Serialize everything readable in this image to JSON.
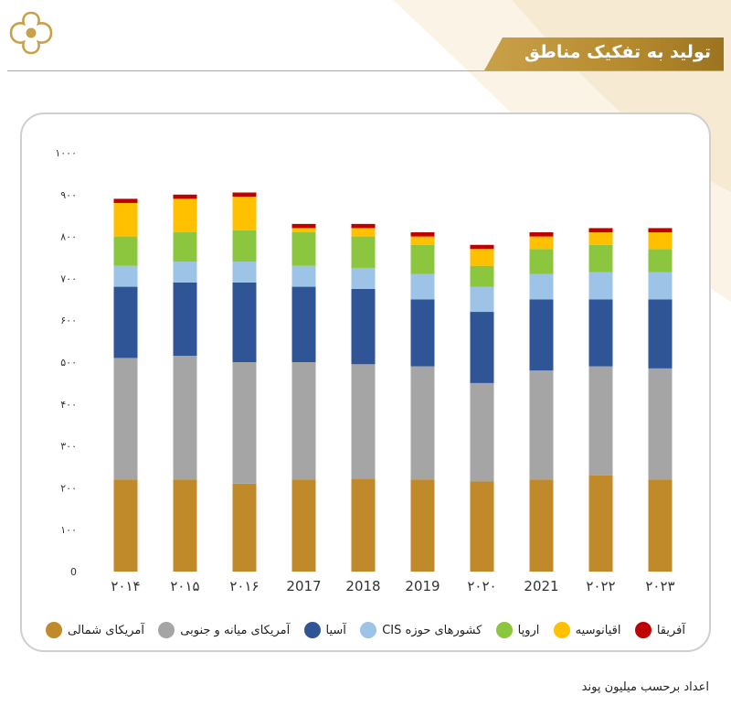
{
  "header": {
    "title": "تولید به تفکیک مناطق"
  },
  "footer": {
    "note": "اعداد برحسب میلیون پوند"
  },
  "icons": {
    "logo": "ornamental-flower-logo-icon"
  },
  "colors": {
    "accent": "#b88c2f",
    "card_border": "#cfcfcf"
  },
  "chart_data": {
    "type": "bar",
    "stacked": true,
    "categories": [
      "۲۰۱۴",
      "۲۰۱۵",
      "۲۰۱۶",
      "2017",
      "2018",
      "2019",
      "۲۰۲۰",
      "2021",
      "۲۰۲۲",
      "۲۰۲۳"
    ],
    "ylim": [
      0,
      1000
    ],
    "yticks": [
      "0",
      "۱۰۰",
      "۲۰۰",
      "۳۰۰",
      "۴۰۰",
      "۵۰۰",
      "۶۰۰",
      "۷۰۰",
      "۸۰۰",
      "۹۰۰",
      "۱۰۰۰"
    ],
    "ytick_values": [
      0,
      100,
      200,
      300,
      400,
      500,
      600,
      700,
      800,
      900,
      1000
    ],
    "grid": false,
    "legend_position": "bottom",
    "series": [
      {
        "name": "آمریکای شمالی",
        "color": "#c08a2b",
        "values": [
          220,
          220,
          210,
          220,
          222,
          220,
          215,
          220,
          230,
          220
        ]
      },
      {
        "name": "آمریکای میانه و جنوبی",
        "color": "#a5a5a5",
        "values": [
          290,
          295,
          290,
          280,
          273,
          270,
          235,
          260,
          260,
          265
        ]
      },
      {
        "name": "آسیا",
        "color": "#2f5597",
        "values": [
          170,
          175,
          190,
          180,
          180,
          160,
          170,
          170,
          160,
          165
        ]
      },
      {
        "name": "کشورهای حوزه CIS",
        "color": "#9dc3e6",
        "values": [
          50,
          50,
          50,
          50,
          50,
          60,
          60,
          60,
          65,
          65
        ]
      },
      {
        "name": "اروپا",
        "color": "#8cc63f",
        "values": [
          70,
          70,
          75,
          80,
          75,
          70,
          50,
          60,
          65,
          55
        ]
      },
      {
        "name": "اقیانوسیه",
        "color": "#ffc000",
        "values": [
          80,
          80,
          80,
          10,
          20,
          20,
          40,
          30,
          30,
          40
        ]
      },
      {
        "name": "آفریقا",
        "color": "#c00000",
        "values": [
          10,
          10,
          10,
          10,
          10,
          10,
          10,
          10,
          10,
          10
        ]
      }
    ]
  }
}
